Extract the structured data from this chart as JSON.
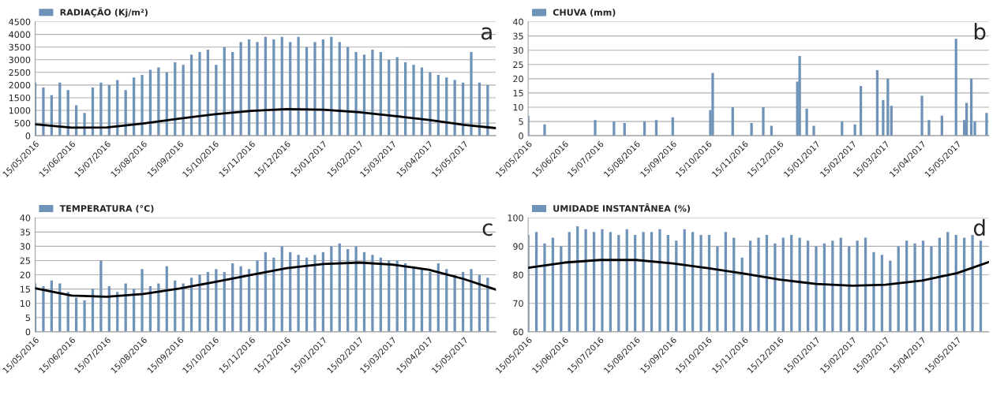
{
  "chart_data": [
    {
      "type": "bar",
      "annotations": [
        {
          "text": "a"
        }
      ],
      "legend": "top left",
      "grid": "y",
      "x": [
        "2016-05-15",
        "2016-05-22",
        "2016-05-29",
        "2016-06-05",
        "2016-06-12",
        "2016-06-19",
        "2016-06-26",
        "2016-07-03",
        "2016-07-10",
        "2016-07-17",
        "2016-07-24",
        "2016-07-31",
        "2016-08-07",
        "2016-08-14",
        "2016-08-21",
        "2016-08-28",
        "2016-09-04",
        "2016-09-11",
        "2016-09-18",
        "2016-09-25",
        "2016-10-02",
        "2016-10-09",
        "2016-10-16",
        "2016-10-23",
        "2016-10-30",
        "2016-11-06",
        "2016-11-13",
        "2016-11-20",
        "2016-11-27",
        "2016-12-04",
        "2016-12-11",
        "2016-12-18",
        "2016-12-25",
        "2017-01-01",
        "2017-01-08",
        "2017-01-15",
        "2017-01-22",
        "2017-01-29",
        "2017-02-05",
        "2017-02-12",
        "2017-02-19",
        "2017-02-26",
        "2017-03-05",
        "2017-03-12",
        "2017-03-19",
        "2017-03-26",
        "2017-04-02",
        "2017-04-09",
        "2017-04-16",
        "2017-04-23",
        "2017-04-30",
        "2017-05-07",
        "2017-05-14",
        "2017-05-21",
        "2017-05-28",
        "2017-06-04"
      ],
      "series": [
        {
          "name": "RADIAÇÃO (Kj/m²)",
          "color": "#6f93b8",
          "values": [
            2100,
            1900,
            1600,
            2100,
            1800,
            1200,
            900,
            1900,
            2100,
            2000,
            2200,
            1800,
            2300,
            2400,
            2600,
            2700,
            2500,
            2900,
            2800,
            3200,
            3300,
            3400,
            2800,
            3500,
            3300,
            3700,
            3800,
            3700,
            3900,
            3800,
            3900,
            3700,
            3900,
            3500,
            3700,
            3800,
            3900,
            3700,
            3500,
            3300,
            3200,
            3400,
            3300,
            3000,
            3100,
            2900,
            2800,
            2700,
            2500,
            2400,
            2300,
            2200,
            2100,
            3300,
            2100,
            2000
          ]
        },
        {
          "type": "line",
          "color": "#000000",
          "x": [
            "2016-05-15",
            "2016-06-15",
            "2016-07-15",
            "2016-08-15",
            "2016-09-15",
            "2016-10-15",
            "2016-11-15",
            "2016-12-15",
            "2017-01-15",
            "2017-02-15",
            "2017-03-15",
            "2017-04-15",
            "2017-05-15",
            "2017-06-11"
          ],
          "values": [
            450,
            320,
            330,
            480,
            680,
            850,
            980,
            1050,
            1030,
            930,
            790,
            620,
            430,
            300
          ]
        }
      ],
      "xlim": [
        "2016-05-15",
        "2017-06-11"
      ],
      "xticks": [
        {
          "value": "2016-05-15",
          "label": "15/05/2016"
        },
        {
          "value": "2016-06-15",
          "label": "15/06/2016"
        },
        {
          "value": "2016-07-15",
          "label": "15/07/2016"
        },
        {
          "value": "2016-08-15",
          "label": "15/08/2016"
        },
        {
          "value": "2016-09-15",
          "label": "15/09/2016"
        },
        {
          "value": "2016-10-15",
          "label": "15/10/2016"
        },
        {
          "value": "2016-11-15",
          "label": "15/11/2016"
        },
        {
          "value": "2016-12-15",
          "label": "15/12/2016"
        },
        {
          "value": "2017-01-15",
          "label": "15/01/2017"
        },
        {
          "value": "2017-02-15",
          "label": "15/02/2017"
        },
        {
          "value": "2017-03-15",
          "label": "15/03/2017"
        },
        {
          "value": "2017-04-15",
          "label": "15/04/2017"
        },
        {
          "value": "2017-05-15",
          "label": "15/05/2017"
        }
      ],
      "ylim": [
        0,
        4500
      ],
      "yticks": [
        0,
        500,
        1000,
        1500,
        2000,
        2500,
        3000,
        3500,
        4000,
        4500
      ]
    },
    {
      "type": "bar",
      "annotations": [
        {
          "text": "b"
        }
      ],
      "legend": "top left",
      "grid": "y",
      "x": [
        "2016-05-15",
        "2016-05-29",
        "2016-07-11",
        "2016-07-27",
        "2016-08-05",
        "2016-08-22",
        "2016-09-01",
        "2016-09-15",
        "2016-10-17",
        "2016-10-19",
        "2016-11-05",
        "2016-11-21",
        "2016-12-01",
        "2016-12-08",
        "2016-12-30",
        "2017-01-01",
        "2017-01-07",
        "2017-01-13",
        "2017-02-06",
        "2017-02-17",
        "2017-02-22",
        "2017-03-08",
        "2017-03-13",
        "2017-03-17",
        "2017-03-20",
        "2017-04-15",
        "2017-04-21",
        "2017-05-02",
        "2017-05-14",
        "2017-05-21",
        "2017-05-23",
        "2017-05-27",
        "2017-05-30",
        "2017-06-09"
      ],
      "series": [
        {
          "name": "CHUVA (mm)",
          "color": "#6f93b8",
          "values": [
            7,
            4,
            5.5,
            5,
            4.5,
            5,
            5.5,
            6.5,
            9,
            22,
            10,
            4.5,
            10,
            3.5,
            19,
            28,
            9.5,
            3.5,
            5,
            4,
            17.5,
            23,
            12.5,
            20,
            10.5,
            14,
            5.5,
            7,
            34,
            5.5,
            11.5,
            20,
            5,
            8
          ]
        }
      ],
      "xlim": [
        "2016-05-15",
        "2017-06-11"
      ],
      "xticks": [
        {
          "value": "2016-05-15",
          "label": "15/05/2016"
        },
        {
          "value": "2016-06-15",
          "label": "15/06/2016"
        },
        {
          "value": "2016-07-15",
          "label": "15/07/2016"
        },
        {
          "value": "2016-08-15",
          "label": "15/08/2016"
        },
        {
          "value": "2016-09-15",
          "label": "15/09/2016"
        },
        {
          "value": "2016-10-15",
          "label": "15/10/2016"
        },
        {
          "value": "2016-11-15",
          "label": "15/11/2016"
        },
        {
          "value": "2016-12-15",
          "label": "15/12/2016"
        },
        {
          "value": "2017-01-15",
          "label": "15/01/2017"
        },
        {
          "value": "2017-02-15",
          "label": "15/02/2017"
        },
        {
          "value": "2017-03-15",
          "label": "15/03/2017"
        },
        {
          "value": "2017-04-15",
          "label": "15/04/2017"
        },
        {
          "value": "2017-05-15",
          "label": "15/05/2017"
        }
      ],
      "ylim": [
        0,
        40
      ],
      "yticks": [
        0,
        5,
        10,
        15,
        20,
        25,
        30,
        35,
        40
      ]
    },
    {
      "type": "bar",
      "annotations": [
        {
          "text": "c"
        }
      ],
      "legend": "top left",
      "grid": "y",
      "x": [
        "2016-05-15",
        "2016-05-22",
        "2016-05-29",
        "2016-06-05",
        "2016-06-12",
        "2016-06-19",
        "2016-06-26",
        "2016-07-03",
        "2016-07-10",
        "2016-07-17",
        "2016-07-24",
        "2016-07-31",
        "2016-08-07",
        "2016-08-14",
        "2016-08-21",
        "2016-08-28",
        "2016-09-04",
        "2016-09-11",
        "2016-09-18",
        "2016-09-25",
        "2016-10-02",
        "2016-10-09",
        "2016-10-16",
        "2016-10-23",
        "2016-10-30",
        "2016-11-06",
        "2016-11-13",
        "2016-11-20",
        "2016-11-27",
        "2016-12-04",
        "2016-12-11",
        "2016-12-18",
        "2016-12-25",
        "2017-01-01",
        "2017-01-08",
        "2017-01-15",
        "2017-01-22",
        "2017-01-29",
        "2017-02-05",
        "2017-02-12",
        "2017-02-19",
        "2017-02-26",
        "2017-03-05",
        "2017-03-12",
        "2017-03-19",
        "2017-03-26",
        "2017-04-02",
        "2017-04-09",
        "2017-04-16",
        "2017-04-23",
        "2017-04-30",
        "2017-05-07",
        "2017-05-14",
        "2017-05-21",
        "2017-05-28",
        "2017-06-04"
      ],
      "series": [
        {
          "name": "TEMPERATURA (°C)",
          "color": "#6f93b8",
          "values": [
            17,
            16,
            18,
            17,
            14,
            12,
            11,
            15,
            25,
            16,
            14,
            17,
            15,
            22,
            16,
            17,
            23,
            18,
            17,
            19,
            20,
            21,
            22,
            21,
            24,
            23,
            22,
            25,
            28,
            26,
            30,
            28,
            27,
            26,
            27,
            28,
            30,
            31,
            29,
            30,
            28,
            27,
            26,
            25,
            25,
            24,
            23,
            22,
            21,
            24,
            22,
            20,
            21,
            22,
            20,
            19
          ]
        },
        {
          "type": "line",
          "color": "#000000",
          "x": [
            "2016-05-15",
            "2016-06-15",
            "2016-07-15",
            "2016-08-15",
            "2016-09-15",
            "2016-10-15",
            "2016-11-15",
            "2016-12-15",
            "2017-01-15",
            "2017-02-15",
            "2017-03-15",
            "2017-04-15",
            "2017-05-15",
            "2017-06-11"
          ],
          "values": [
            15.3,
            12.7,
            12.3,
            13.3,
            15.2,
            17.5,
            20,
            22.3,
            23.8,
            24.3,
            23.6,
            21.8,
            18.5,
            14.8
          ]
        }
      ],
      "xlim": [
        "2016-05-15",
        "2017-06-11"
      ],
      "xticks": [
        {
          "value": "2016-05-15",
          "label": "15/05/2016"
        },
        {
          "value": "2016-06-15",
          "label": "15/06/2016"
        },
        {
          "value": "2016-07-15",
          "label": "15/07/2016"
        },
        {
          "value": "2016-08-15",
          "label": "15/08/2016"
        },
        {
          "value": "2016-09-15",
          "label": "15/09/2016"
        },
        {
          "value": "2016-10-15",
          "label": "15/10/2016"
        },
        {
          "value": "2016-11-15",
          "label": "15/11/2016"
        },
        {
          "value": "2016-12-15",
          "label": "15/12/2016"
        },
        {
          "value": "2017-01-15",
          "label": "15/01/2017"
        },
        {
          "value": "2017-02-15",
          "label": "15/02/2017"
        },
        {
          "value": "2017-03-15",
          "label": "15/03/2017"
        },
        {
          "value": "2017-04-15",
          "label": "15/04/2017"
        },
        {
          "value": "2017-05-15",
          "label": "15/05/2017"
        }
      ],
      "ylim": [
        0,
        40
      ],
      "yticks": [
        0,
        5,
        10,
        15,
        20,
        25,
        30,
        35,
        40
      ]
    },
    {
      "type": "bar",
      "annotations": [
        {
          "text": "d"
        }
      ],
      "legend": "top left",
      "grid": "y",
      "x": [
        "2016-05-15",
        "2016-05-22",
        "2016-05-29",
        "2016-06-05",
        "2016-06-12",
        "2016-06-19",
        "2016-06-26",
        "2016-07-03",
        "2016-07-10",
        "2016-07-17",
        "2016-07-24",
        "2016-07-31",
        "2016-08-07",
        "2016-08-14",
        "2016-08-21",
        "2016-08-28",
        "2016-09-04",
        "2016-09-11",
        "2016-09-18",
        "2016-09-25",
        "2016-10-02",
        "2016-10-09",
        "2016-10-16",
        "2016-10-23",
        "2016-10-30",
        "2016-11-06",
        "2016-11-13",
        "2016-11-20",
        "2016-11-27",
        "2016-12-04",
        "2016-12-11",
        "2016-12-18",
        "2016-12-25",
        "2017-01-01",
        "2017-01-08",
        "2017-01-15",
        "2017-01-22",
        "2017-01-29",
        "2017-02-05",
        "2017-02-12",
        "2017-02-19",
        "2017-02-26",
        "2017-03-05",
        "2017-03-12",
        "2017-03-19",
        "2017-03-26",
        "2017-04-02",
        "2017-04-09",
        "2017-04-16",
        "2017-04-23",
        "2017-04-30",
        "2017-05-07",
        "2017-05-14",
        "2017-05-21",
        "2017-05-28",
        "2017-06-04"
      ],
      "series": [
        {
          "name": "UMIDADE INSTANTÂNEA (%)",
          "color": "#6f93b8",
          "values": [
            94,
            95,
            91,
            93,
            90,
            95,
            97,
            96,
            95,
            96,
            95,
            94,
            96,
            94,
            95,
            95,
            96,
            94,
            92,
            96,
            95,
            94,
            94,
            90,
            95,
            93,
            86,
            92,
            93,
            94,
            91,
            93,
            94,
            93,
            92,
            90,
            91,
            92,
            93,
            90,
            92,
            93,
            88,
            87,
            85,
            90,
            92,
            91,
            92,
            90,
            93,
            95,
            94,
            93,
            94,
            92
          ]
        },
        {
          "type": "line",
          "color": "#000000",
          "x": [
            "2016-05-15",
            "2016-06-15",
            "2016-07-15",
            "2016-08-15",
            "2016-09-15",
            "2016-10-15",
            "2016-11-15",
            "2016-12-15",
            "2017-01-15",
            "2017-02-15",
            "2017-03-15",
            "2017-04-15",
            "2017-05-15",
            "2017-06-11"
          ],
          "values": [
            82.5,
            84.3,
            85.2,
            85.2,
            84,
            82.3,
            80.4,
            78.3,
            76.8,
            76.2,
            76.5,
            78,
            80.6,
            84.5
          ]
        }
      ],
      "xlim": [
        "2016-05-15",
        "2017-06-11"
      ],
      "xticks": [
        {
          "value": "2016-05-15",
          "label": "15/05/2016"
        },
        {
          "value": "2016-06-15",
          "label": "15/06/2016"
        },
        {
          "value": "2016-07-15",
          "label": "15/07/2016"
        },
        {
          "value": "2016-08-15",
          "label": "15/08/2016"
        },
        {
          "value": "2016-09-15",
          "label": "15/09/2016"
        },
        {
          "value": "2016-10-15",
          "label": "15/10/2016"
        },
        {
          "value": "2016-11-15",
          "label": "15/11/2016"
        },
        {
          "value": "2016-12-15",
          "label": "15/12/2016"
        },
        {
          "value": "2017-01-15",
          "label": "15/01/2017"
        },
        {
          "value": "2017-02-15",
          "label": "15/02/2017"
        },
        {
          "value": "2017-03-15",
          "label": "15/03/2017"
        },
        {
          "value": "2017-04-15",
          "label": "15/04/2017"
        },
        {
          "value": "2017-05-15",
          "label": "15/05/2017"
        }
      ],
      "ylim": [
        60,
        100
      ],
      "yticks": [
        60,
        70,
        80,
        90,
        100
      ]
    }
  ]
}
